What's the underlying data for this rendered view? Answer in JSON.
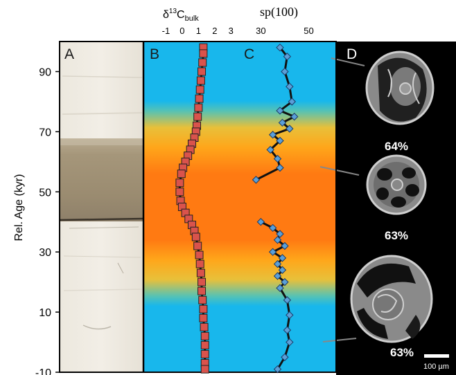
{
  "y_axis": {
    "label": "Rel. Age (kyr)",
    "ticks": [
      90,
      70,
      50,
      30,
      10,
      -10
    ],
    "range": [
      -10,
      100
    ]
  },
  "panels": {
    "a": {
      "label": "A"
    },
    "b": {
      "label": "B",
      "title_main": "δ",
      "title_sup": "13",
      "title_c": "C",
      "title_sub": "bulk",
      "ticks": [
        "-1",
        "0",
        "1",
        "2",
        "3"
      ],
      "x_range": [
        -2,
        3.5
      ]
    },
    "c": {
      "label": "C",
      "title": "sp(100)",
      "ticks": [
        "30",
        "50"
      ],
      "x_range": [
        5,
        60
      ]
    },
    "d": {
      "label": "D",
      "percentages": [
        "64%",
        "63%",
        "63%"
      ],
      "scale_bar": "100 µm"
    }
  },
  "colors": {
    "background_blue": "#18b7ec",
    "band_orange": "#ff7a12",
    "band_yellow": "#ffb21c",
    "d13c_marker": "#d9534c",
    "sp_marker": "#5a9fd8"
  },
  "chart_data": [
    {
      "type": "scatter",
      "title": "δ13Cbulk",
      "x_axis": "δ13C bulk",
      "y_axis": "Rel. Age (kyr)",
      "ylim": [
        -10,
        100
      ],
      "points": [
        {
          "x": 1.3,
          "y": 98
        },
        {
          "x": 1.3,
          "y": 96
        },
        {
          "x": 1.25,
          "y": 93
        },
        {
          "x": 1.2,
          "y": 90
        },
        {
          "x": 1.15,
          "y": 87
        },
        {
          "x": 1.1,
          "y": 84
        },
        {
          "x": 1.05,
          "y": 81
        },
        {
          "x": 1.0,
          "y": 78
        },
        {
          "x": 0.95,
          "y": 75
        },
        {
          "x": 0.9,
          "y": 72
        },
        {
          "x": 0.85,
          "y": 70
        },
        {
          "x": 0.75,
          "y": 68
        },
        {
          "x": 0.6,
          "y": 66
        },
        {
          "x": 0.5,
          "y": 64
        },
        {
          "x": 0.35,
          "y": 62
        },
        {
          "x": 0.2,
          "y": 60
        },
        {
          "x": 0.05,
          "y": 58
        },
        {
          "x": -0.05,
          "y": 56
        },
        {
          "x": -0.15,
          "y": 53
        },
        {
          "x": -0.15,
          "y": 50
        },
        {
          "x": -0.1,
          "y": 47
        },
        {
          "x": 0.0,
          "y": 45
        },
        {
          "x": 0.2,
          "y": 43
        },
        {
          "x": 0.4,
          "y": 41
        },
        {
          "x": 0.6,
          "y": 39
        },
        {
          "x": 0.75,
          "y": 37
        },
        {
          "x": 0.85,
          "y": 35
        },
        {
          "x": 0.95,
          "y": 32
        },
        {
          "x": 1.05,
          "y": 29
        },
        {
          "x": 1.1,
          "y": 26
        },
        {
          "x": 1.15,
          "y": 23
        },
        {
          "x": 1.2,
          "y": 20
        },
        {
          "x": 1.2,
          "y": 17
        },
        {
          "x": 1.25,
          "y": 14
        },
        {
          "x": 1.3,
          "y": 11
        },
        {
          "x": 1.3,
          "y": 8
        },
        {
          "x": 1.35,
          "y": 5
        },
        {
          "x": 1.4,
          "y": 2
        },
        {
          "x": 1.4,
          "y": -1
        },
        {
          "x": 1.4,
          "y": -4
        },
        {
          "x": 1.4,
          "y": -7
        },
        {
          "x": 1.4,
          "y": -9
        }
      ]
    },
    {
      "type": "line",
      "title": "sp(100)",
      "x_axis": "sp(100)",
      "y_axis": "Rel. Age (kyr)",
      "ylim": [
        -10,
        100
      ],
      "segments": [
        [
          {
            "x": 38,
            "y": 98
          },
          {
            "x": 41,
            "y": 95
          },
          {
            "x": 40,
            "y": 90
          },
          {
            "x": 42,
            "y": 85
          },
          {
            "x": 43,
            "y": 80
          },
          {
            "x": 38,
            "y": 77
          },
          {
            "x": 44,
            "y": 75
          },
          {
            "x": 39,
            "y": 73
          },
          {
            "x": 42,
            "y": 71
          },
          {
            "x": 35,
            "y": 69
          },
          {
            "x": 38,
            "y": 67
          },
          {
            "x": 34,
            "y": 64
          },
          {
            "x": 37,
            "y": 61
          },
          {
            "x": 38,
            "y": 58
          },
          {
            "x": 28,
            "y": 54
          }
        ],
        [
          {
            "x": 30,
            "y": 40
          },
          {
            "x": 35,
            "y": 38
          },
          {
            "x": 38,
            "y": 36
          },
          {
            "x": 37,
            "y": 34
          },
          {
            "x": 40,
            "y": 32
          },
          {
            "x": 35,
            "y": 30
          },
          {
            "x": 39,
            "y": 28
          },
          {
            "x": 37,
            "y": 26
          },
          {
            "x": 39,
            "y": 24
          },
          {
            "x": 37,
            "y": 22
          },
          {
            "x": 40,
            "y": 20
          },
          {
            "x": 38,
            "y": 18
          },
          {
            "x": 41,
            "y": 14
          },
          {
            "x": 42,
            "y": 9
          },
          {
            "x": 41,
            "y": 4
          },
          {
            "x": 42,
            "y": 0
          },
          {
            "x": 40,
            "y": -5
          },
          {
            "x": 37,
            "y": -9
          }
        ]
      ]
    }
  ]
}
